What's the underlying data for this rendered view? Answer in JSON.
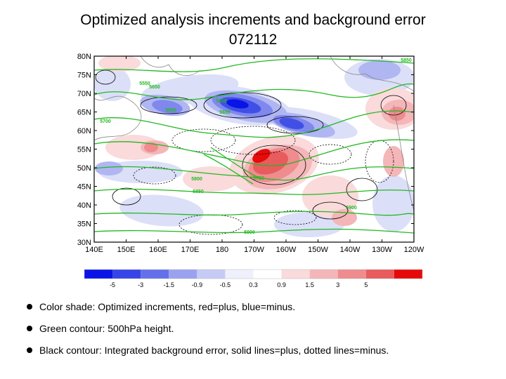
{
  "title": {
    "line1": "Optimized analysis increments and background error",
    "line2": "072112"
  },
  "map": {
    "lat_labels": [
      "80N",
      "75N",
      "70N",
      "65N",
      "60N",
      "55N",
      "50N",
      "45N",
      "40N",
      "35N",
      "30N"
    ],
    "lon_labels": [
      "140E",
      "150E",
      "160E",
      "170E",
      "180",
      "170W",
      "160W",
      "150W",
      "140W",
      "130W",
      "120W"
    ],
    "height_contour_labels": [
      "5550",
      "5550",
      "5600",
      "5650",
      "5650",
      "5700",
      "5750",
      "5800",
      "5850",
      "5900",
      "5900",
      "5850"
    ],
    "colors": {
      "blue_dark": "#0a14e6",
      "blue_mid": "#4050e6",
      "blue_light": "#8088ee",
      "blue_pale": "#b0b6f2",
      "blue_faint": "#dcdff8",
      "red_faint": "#fadadb",
      "red_pale": "#f4b6b8",
      "red_light": "#ee8c8e",
      "red_mid": "#e85c5e",
      "red_dark": "#e60a0a",
      "height_contour": "#22b822",
      "error_contour": "#000000"
    }
  },
  "colorbar": {
    "colors": [
      "#0a14e6",
      "#3744e8",
      "#6470ea",
      "#9aa2f0",
      "#c6cbf5",
      "#eef0fc",
      "#ffffff",
      "#fadadb",
      "#f4b6b8",
      "#ee8c8e",
      "#e85c5e",
      "#e60a0a"
    ],
    "labels": [
      "-5",
      "-3",
      "-1.5",
      "-0.9",
      "-0.5",
      "0.3",
      "0.9",
      "1.5",
      "3",
      "5"
    ]
  },
  "bullets": [
    "Color shade: Optimized increments, red=plus, blue=minus.",
    "Green contour: 500hPa height.",
    "Black contour: Integrated background error, solid lines=plus, dotted lines=minus."
  ]
}
